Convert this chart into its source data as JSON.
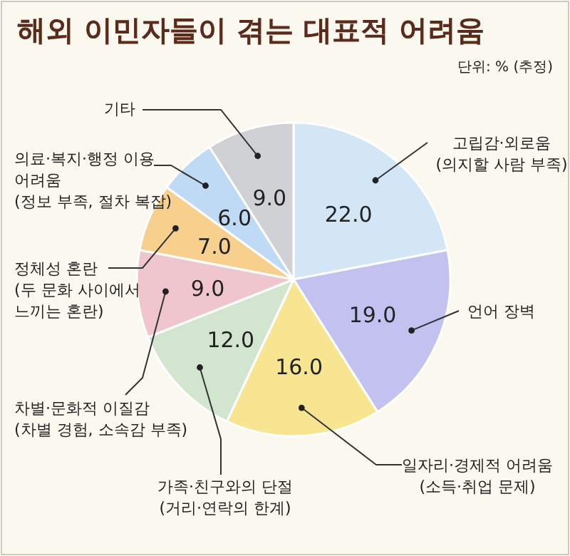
{
  "chart_data": {
    "type": "pie",
    "title": "해외 이민자들이 겪는 대표적 어려움",
    "subtitle": "단위: % (추정)",
    "categories": [
      "고립감·외로움\n(의지할 사람 부족)",
      "언어 장벽",
      "일자리·경제적 어려움\n(소득·취업 문제)",
      "가족·친구와의 단절\n(거리·연락의 한계)",
      "차별·문화적 이질감\n(차별 경험, 소속감 부족)",
      "정체성 혼란\n(두 문화 사이에서\n느끼는 혼란)",
      "의료·복지·행정 이용\n어려움\n(정보 부족, 절차 복잡)",
      "기타"
    ],
    "values": [
      22,
      19,
      16,
      12,
      9,
      7,
      6,
      9
    ],
    "value_labels": [
      "22.0",
      "19.0",
      "16.0",
      "12.0",
      "9.0",
      "7.0",
      "6.0",
      "9.0"
    ],
    "colors": [
      "#d3e6f6",
      "#c3c1f0",
      "#f8e592",
      "#d2e5cf",
      "#f0c6ce",
      "#f8d08e",
      "#bedaf5",
      "#d0d1d4"
    ]
  }
}
